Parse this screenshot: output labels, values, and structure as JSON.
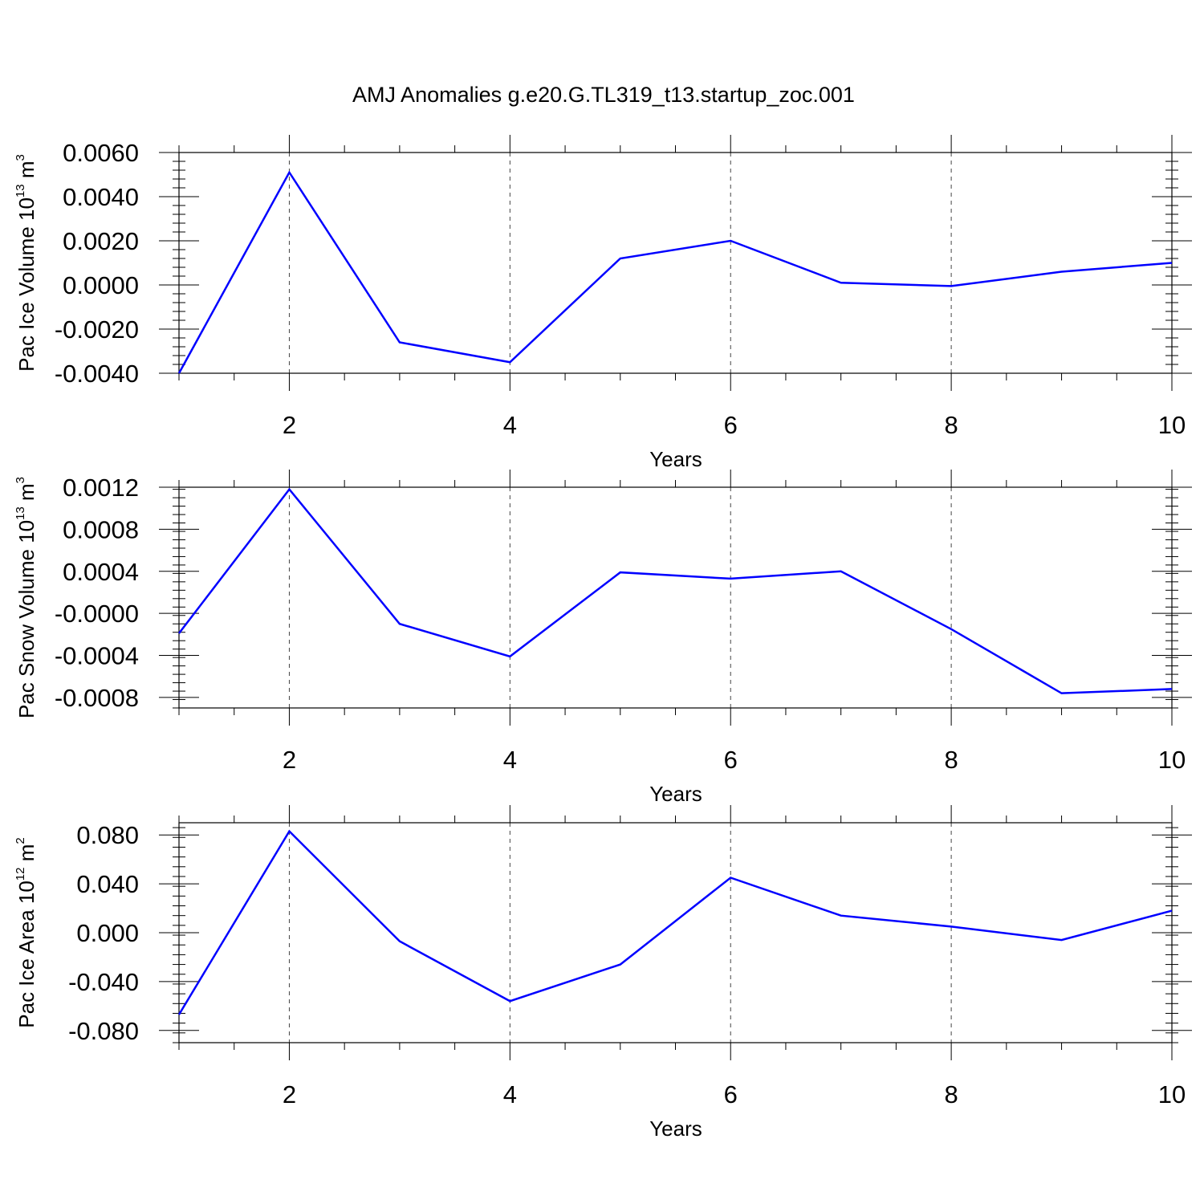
{
  "title": "AMJ Anomalies g.e20.G.TL319_t13.startup_zoc.001",
  "chart_data": [
    {
      "type": "line",
      "ylabel": {
        "text": "Pac Ice Volume 10",
        "exp": "13",
        "unit": " m",
        "unit_exp": "3"
      },
      "xlabel": "Years",
      "xlim": [
        1,
        10
      ],
      "ylim": [
        -0.004,
        0.006
      ],
      "yticks": [
        -0.004,
        -0.002,
        0.0,
        0.002,
        0.004,
        0.006
      ],
      "yticklabels": [
        "-0.0040",
        "-0.0020",
        "0.0000",
        "0.0020",
        "0.0040",
        "0.0060"
      ],
      "xticks": [
        2,
        4,
        6,
        8,
        10
      ],
      "xticklabels": [
        "2",
        "4",
        "6",
        "8",
        "10"
      ],
      "grid": "vertical dashed at major x ticks",
      "color": "#0000ff",
      "x": [
        1,
        2,
        3,
        4,
        5,
        6,
        7,
        8,
        9,
        10
      ],
      "y": [
        -0.004,
        0.0051,
        -0.0026,
        -0.0035,
        0.0012,
        0.002,
        0.0001,
        -5e-05,
        0.0006,
        0.001
      ]
    },
    {
      "type": "line",
      "ylabel": {
        "text": "Pac Snow Volume 10",
        "exp": "13",
        "unit": " m",
        "unit_exp": "3"
      },
      "xlabel": "Years",
      "xlim": [
        1,
        10
      ],
      "ylim": [
        -0.0009,
        0.0012
      ],
      "yticks": [
        -0.0008,
        -0.0004,
        0.0,
        0.0004,
        0.0008,
        0.0012
      ],
      "yticklabels": [
        "-0.0008",
        "-0.0004",
        "-0.0000",
        "0.0004",
        "0.0008",
        "0.0012"
      ],
      "xticks": [
        2,
        4,
        6,
        8,
        10
      ],
      "xticklabels": [
        "2",
        "4",
        "6",
        "8",
        "10"
      ],
      "grid": "vertical dashed at major x ticks",
      "color": "#0000ff",
      "x": [
        1,
        2,
        3,
        4,
        5,
        6,
        7,
        8,
        9,
        10
      ],
      "y": [
        -0.00019,
        0.00118,
        -0.0001,
        -0.00041,
        0.00039,
        0.00033,
        0.0004,
        -0.00015,
        -0.00076,
        -0.00072
      ]
    },
    {
      "type": "line",
      "ylabel": {
        "text": "Pac Ice Area 10",
        "exp": "12",
        "unit": " m",
        "unit_exp": "2"
      },
      "xlabel": "Years",
      "xlim": [
        1,
        10
      ],
      "ylim": [
        -0.09,
        0.09
      ],
      "yticks": [
        -0.08,
        -0.04,
        0.0,
        0.04,
        0.08
      ],
      "yticklabels": [
        "-0.080",
        "-0.040",
        "0.000",
        "0.040",
        "0.080"
      ],
      "xticks": [
        2,
        4,
        6,
        8,
        10
      ],
      "xticklabels": [
        "2",
        "4",
        "6",
        "8",
        "10"
      ],
      "grid": "vertical dashed at major x ticks",
      "color": "#0000ff",
      "x": [
        1,
        2,
        3,
        4,
        5,
        6,
        7,
        8,
        9,
        10
      ],
      "y": [
        -0.067,
        0.083,
        -0.007,
        -0.056,
        -0.026,
        0.045,
        0.014,
        0.005,
        -0.006,
        0.018
      ]
    }
  ]
}
